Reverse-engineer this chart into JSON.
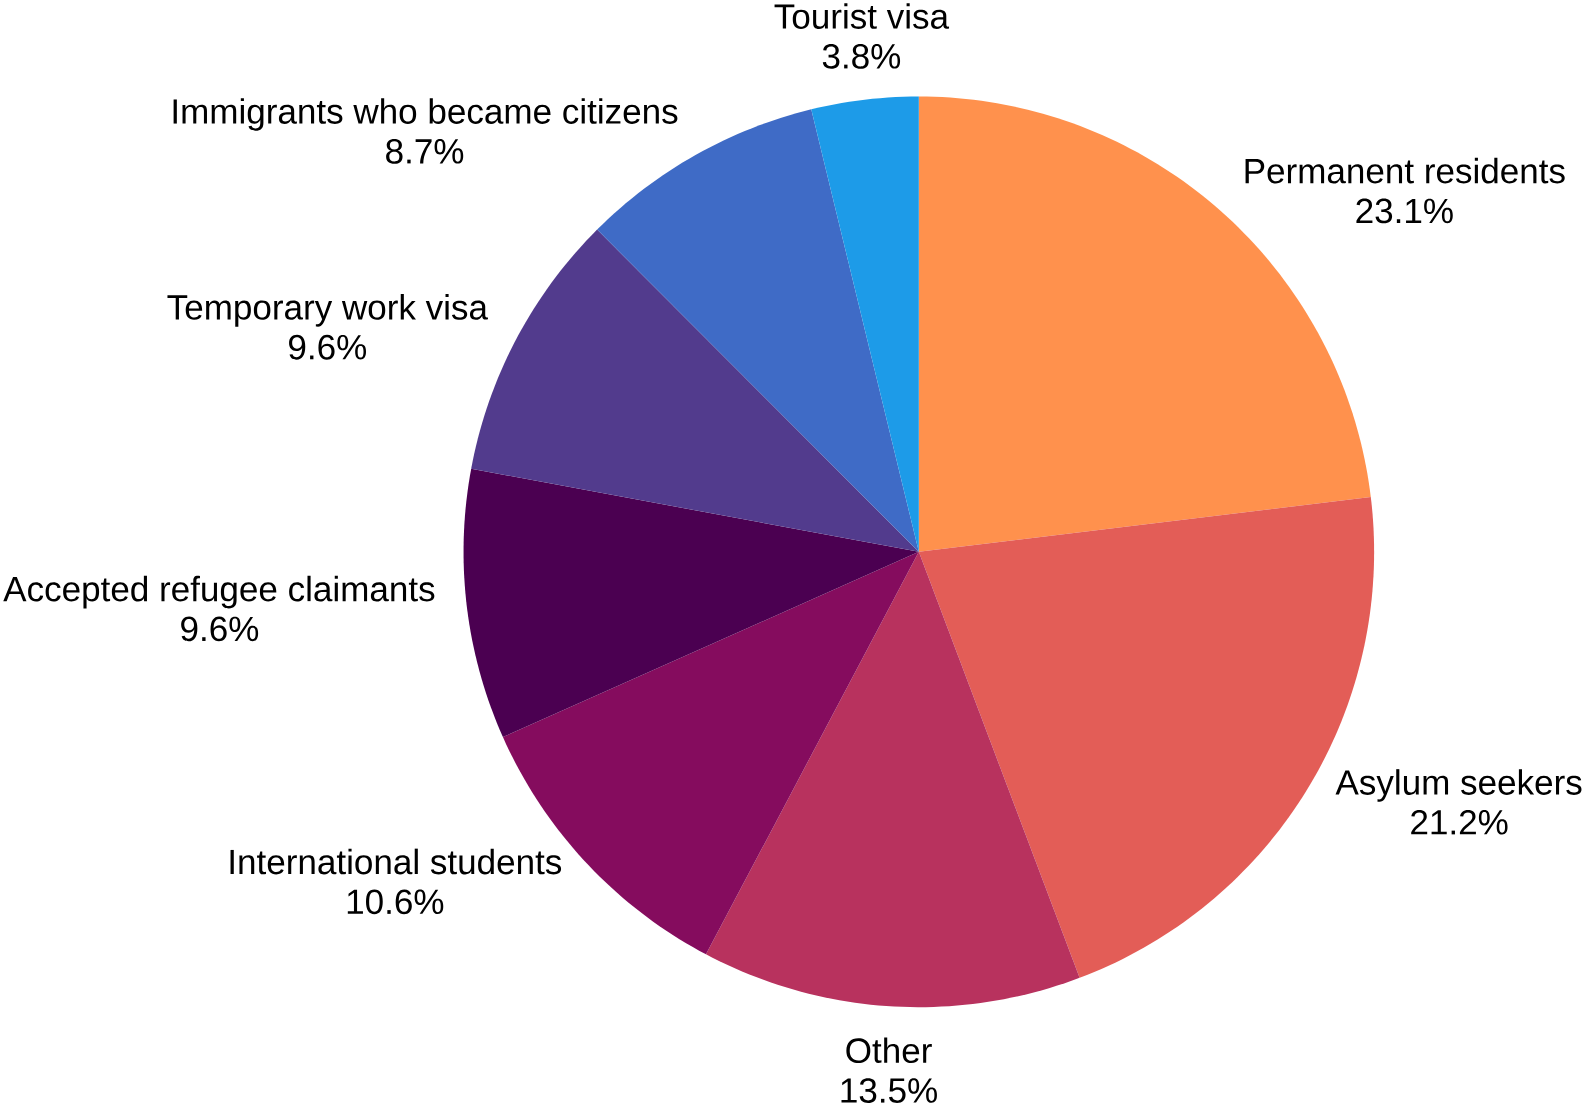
{
  "chart_data": {
    "type": "pie",
    "categories": [
      "Permanent residents",
      "Asylum seekers",
      "Other",
      "International students",
      "Accepted refugee claimants",
      "Temporary work visa",
      "Immigrants who became citizens",
      "Tourist visa"
    ],
    "values": [
      23.1,
      21.2,
      13.5,
      10.6,
      9.6,
      9.6,
      8.7,
      3.8
    ],
    "value_labels": [
      "23.1%",
      "21.2%",
      "13.5%",
      "10.6%",
      "9.6%",
      "9.6%",
      "8.7%",
      "3.8%"
    ],
    "colors": [
      "#ff914d",
      "#e35d57",
      "#b8325e",
      "#850c5e",
      "#4b0051",
      "#523b8d",
      "#3f6bc6",
      "#1d9be8"
    ]
  }
}
